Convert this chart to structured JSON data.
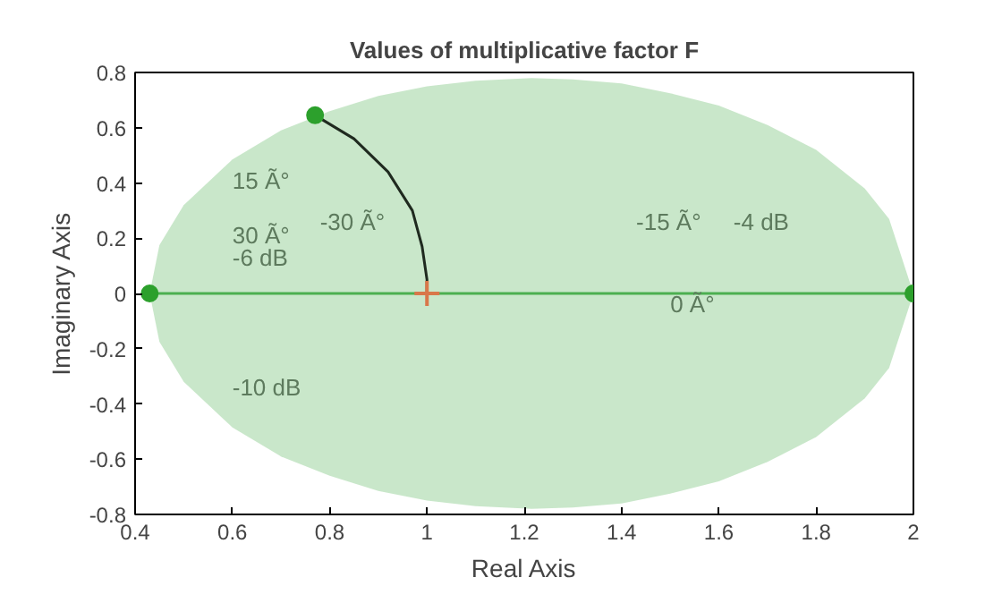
{
  "chart_data": {
    "type": "line",
    "title": "Values of multiplicative factor F",
    "xlabel": "Real Axis",
    "ylabel": "Imaginary Axis",
    "xlim": [
      0.4,
      2
    ],
    "ylim": [
      -0.8,
      0.8
    ],
    "xticks": [
      0.4,
      0.6,
      0.8,
      1,
      1.2,
      1.4,
      1.6,
      1.8,
      2
    ],
    "yticks": [
      -0.8,
      -0.6,
      -0.4,
      -0.2,
      0,
      0.2,
      0.4,
      0.6,
      0.8
    ],
    "grid": false,
    "series": [
      {
        "color": "#4caf50",
        "x": [
          0.43,
          0.45,
          0.5,
          0.6,
          0.7,
          0.8,
          0.9,
          1.0,
          1.1,
          1.215,
          1.3,
          1.4,
          1.5,
          1.6,
          1.7,
          1.8,
          1.9,
          1.95,
          2.0
        ],
        "values": [
          0,
          0,
          0,
          0,
          0,
          0,
          0,
          0,
          0,
          0,
          0,
          0,
          0,
          0,
          0,
          0,
          0,
          0,
          0
        ],
        "upper": [
          0,
          0.175,
          0.32,
          0.485,
          0.59,
          0.66,
          0.715,
          0.75,
          0.77,
          0.78,
          0.775,
          0.76,
          0.725,
          0.68,
          0.61,
          0.52,
          0.38,
          0.27,
          0
        ],
        "lower": [
          0,
          -0.175,
          -0.32,
          -0.485,
          -0.59,
          -0.66,
          -0.715,
          -0.75,
          -0.77,
          -0.78,
          -0.775,
          -0.76,
          -0.725,
          -0.68,
          -0.61,
          -0.52,
          -0.38,
          -0.27,
          0
        ]
      },
      {
        "color": "#1f2a1f",
        "x": [
          0.77,
          0.85,
          0.92,
          0.97,
          0.99,
          1.0,
          1.0
        ],
        "values": [
          0.645,
          0.56,
          0.44,
          0.3,
          0.17,
          0.05,
          0
        ]
      },
      {
        "type": "scatter",
        "color": "#2ca02c",
        "marker": "circle",
        "x": [
          0.43,
          0.77,
          2.0
        ],
        "values": [
          0,
          0.645,
          0
        ]
      },
      {
        "type": "scatter",
        "color": "#d9774a",
        "marker": "cross",
        "x": [
          1.0
        ],
        "values": [
          0
        ]
      }
    ],
    "annotations": [
      "15 Ã°",
      "30 Ã°",
      "-6 dB",
      "-30 Ã°",
      "-10 dB",
      "-15 Ã°",
      "-4 dB",
      "0 Ã°"
    ]
  }
}
